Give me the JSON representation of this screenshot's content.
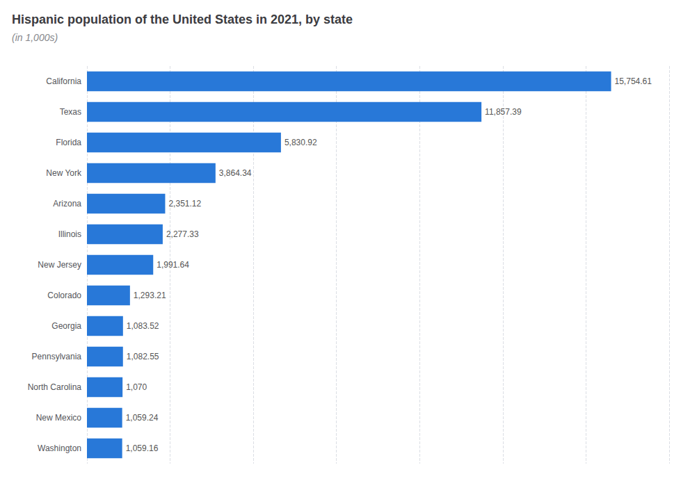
{
  "chart_data": {
    "type": "bar",
    "orientation": "horizontal",
    "title": "Hispanic population of the United States in 2021, by state",
    "subtitle": "(in 1,000s)",
    "categories": [
      "California",
      "Texas",
      "Florida",
      "New York",
      "Arizona",
      "Illinois",
      "New Jersey",
      "Colorado",
      "Georgia",
      "Pennsylvania",
      "North Carolina",
      "New Mexico",
      "Washington"
    ],
    "values": [
      15754.61,
      11857.39,
      5830.92,
      3864.34,
      2351.12,
      2277.33,
      1991.64,
      1293.21,
      1083.52,
      1082.55,
      1070,
      1059.24,
      1059.16
    ],
    "value_labels": [
      "15,754.61",
      "11,857.39",
      "5,830.92",
      "3,864.34",
      "2,351.12",
      "2,277.33",
      "1,991.64",
      "1,293.21",
      "1,083.52",
      "1,082.55",
      "1,070",
      "1,059.24",
      "1,059.16"
    ],
    "data_labels": true,
    "color": "#2878d8",
    "xlim": [
      0,
      17500
    ],
    "xticks": [
      0,
      2500,
      5000,
      7500,
      10000,
      12500,
      15000,
      17500
    ],
    "grid": true,
    "tick_labels": "y"
  }
}
